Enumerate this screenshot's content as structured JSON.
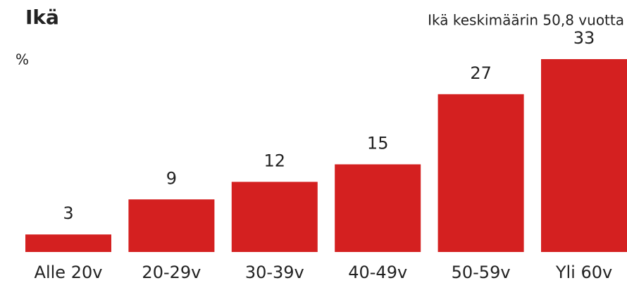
{
  "chart_data": {
    "type": "bar",
    "title": "Ikä",
    "subtitle": "Ikä keskimäärin 50,8 vuotta",
    "y_label": "%",
    "categories": [
      "Alle 20v",
      "20-29v",
      "30-39v",
      "40-49v",
      "50-59v",
      "Yli 60v"
    ],
    "values": [
      3,
      9,
      12,
      15,
      27,
      33
    ],
    "color": "#d42020"
  }
}
